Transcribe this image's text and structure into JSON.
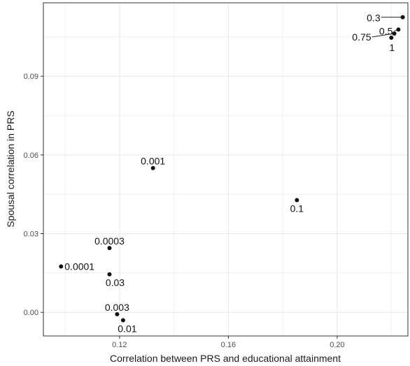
{
  "chart_data": {
    "type": "scatter",
    "xlabel": "Correlation between PRS and educational attainment",
    "ylabel": "Spousal correlation in PRS",
    "xlim": [
      0.092,
      0.226
    ],
    "ylim": [
      -0.009,
      0.118
    ],
    "x_ticks": [
      {
        "value": 0.12,
        "label": "0.12"
      },
      {
        "value": 0.16,
        "label": "0.16"
      },
      {
        "value": 0.2,
        "label": "0.20"
      }
    ],
    "y_ticks": [
      {
        "value": 0.0,
        "label": "0.00"
      },
      {
        "value": 0.03,
        "label": "0.03"
      },
      {
        "value": 0.06,
        "label": "0.06"
      },
      {
        "value": 0.09,
        "label": "0.09"
      }
    ],
    "grid": true,
    "points": [
      {
        "label": "0.0001",
        "x": 0.0985,
        "y": 0.0175
      },
      {
        "label": "0.0003",
        "x": 0.1163,
        "y": 0.0245
      },
      {
        "label": "0.001",
        "x": 0.1323,
        "y": 0.055
      },
      {
        "label": "0.003",
        "x": 0.1191,
        "y": -0.0007
      },
      {
        "label": "0.01",
        "x": 0.1213,
        "y": -0.003
      },
      {
        "label": "0.03",
        "x": 0.1163,
        "y": 0.0145
      },
      {
        "label": "0.1",
        "x": 0.1852,
        "y": 0.0428
      },
      {
        "label": "0.3",
        "x": 0.2241,
        "y": 0.1125
      },
      {
        "label": "0.5",
        "x": 0.2225,
        "y": 0.1078
      },
      {
        "label": "0.75",
        "x": 0.221,
        "y": 0.1063
      },
      {
        "label": "1",
        "x": 0.2199,
        "y": 0.1047
      }
    ],
    "colors": {
      "panel": "#ffffff",
      "grid": "#e8e8e8",
      "border": "#333333",
      "point": "#111111"
    }
  }
}
